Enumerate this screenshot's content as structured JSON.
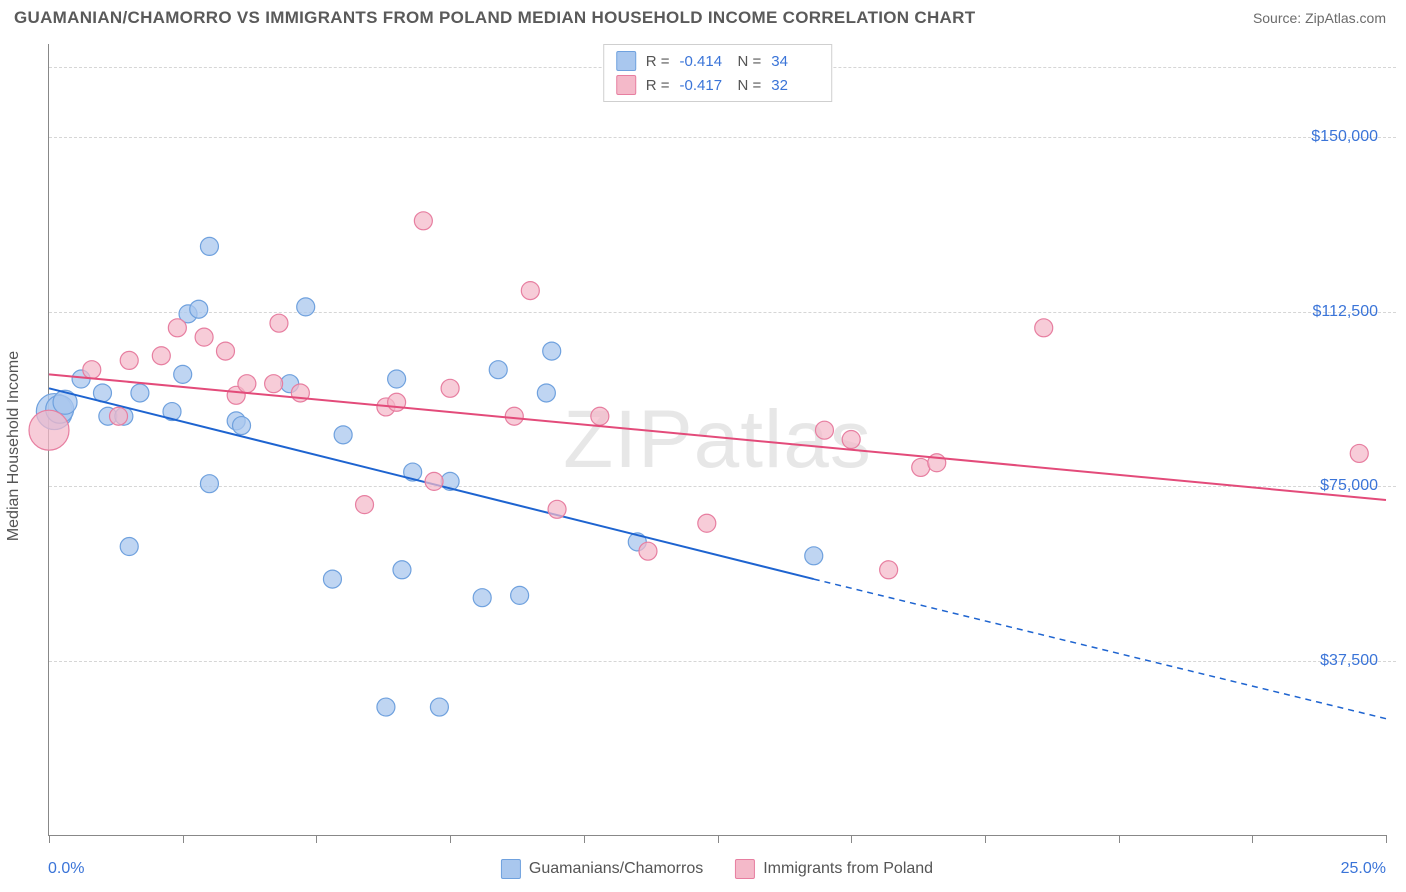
{
  "header": {
    "title": "GUAMANIAN/CHAMORRO VS IMMIGRANTS FROM POLAND MEDIAN HOUSEHOLD INCOME CORRELATION CHART",
    "source": "Source: ZipAtlas.com"
  },
  "watermark": "ZIPatlas",
  "chart": {
    "type": "scatter",
    "y_axis_title": "Median Household Income",
    "xlim": [
      0,
      25
    ],
    "ylim": [
      0,
      170000
    ],
    "x_min_label": "0.0%",
    "x_max_label": "25.0%",
    "x_tick_positions": [
      0,
      2.5,
      5,
      7.5,
      10,
      12.5,
      15,
      17.5,
      20,
      22.5,
      25
    ],
    "y_grid": [
      37500,
      75000,
      112500,
      150000,
      165000
    ],
    "y_tick_labels": {
      "37500": "$37,500",
      "75000": "$75,000",
      "112500": "$112,500",
      "150000": "$150,000"
    },
    "background_color": "#ffffff",
    "grid_color": "#d6d6d6",
    "axis_color": "#888888",
    "label_color": "#3a74d8",
    "series": [
      {
        "id": "guamanians",
        "name": "Guamanians/Chamorros",
        "R": "-0.414",
        "N": "34",
        "marker_fill": "#a9c7ee",
        "marker_stroke": "#6fa1de",
        "marker_opacity": 0.75,
        "line_color": "#1e64d0",
        "line_width": 2,
        "marker_r": 9,
        "trend_solid": [
          [
            0,
            96000
          ],
          [
            14.3,
            55000
          ]
        ],
        "trend_dashed": [
          [
            14.3,
            55000
          ],
          [
            25,
            25000
          ]
        ],
        "points": [
          [
            0.1,
            91000,
            18
          ],
          [
            0.2,
            91500,
            14
          ],
          [
            0.3,
            93000,
            12
          ],
          [
            0.6,
            98000,
            9
          ],
          [
            1.0,
            95000,
            9
          ],
          [
            1.1,
            90000,
            9
          ],
          [
            1.4,
            90000,
            9
          ],
          [
            1.5,
            62000,
            9
          ],
          [
            1.7,
            95000,
            9
          ],
          [
            2.3,
            91000,
            9
          ],
          [
            2.5,
            99000,
            9
          ],
          [
            2.6,
            112000,
            9
          ],
          [
            2.8,
            113000,
            9
          ],
          [
            3.0,
            126500,
            9
          ],
          [
            3.0,
            75500,
            9
          ],
          [
            3.5,
            89000,
            9
          ],
          [
            3.6,
            88000,
            9
          ],
          [
            4.5,
            97000,
            9
          ],
          [
            4.8,
            113500,
            9
          ],
          [
            5.3,
            55000,
            9
          ],
          [
            5.5,
            86000,
            9
          ],
          [
            6.3,
            27500,
            9
          ],
          [
            6.5,
            98000,
            9
          ],
          [
            6.6,
            57000,
            9
          ],
          [
            6.8,
            78000,
            9
          ],
          [
            7.3,
            27500,
            9
          ],
          [
            7.5,
            76000,
            9
          ],
          [
            8.1,
            51000,
            9
          ],
          [
            8.4,
            100000,
            9
          ],
          [
            8.8,
            51500,
            9
          ],
          [
            9.3,
            95000,
            9
          ],
          [
            9.4,
            104000,
            9
          ],
          [
            11.0,
            63000,
            9
          ],
          [
            14.3,
            60000,
            9
          ]
        ]
      },
      {
        "id": "poland",
        "name": "Immigrants from Poland",
        "R": "-0.417",
        "N": "32",
        "marker_fill": "#f4b9c9",
        "marker_stroke": "#e77ea0",
        "marker_opacity": 0.72,
        "line_color": "#e34b7a",
        "line_width": 2,
        "marker_r": 9,
        "trend_solid": [
          [
            0,
            99000
          ],
          [
            25,
            72000
          ]
        ],
        "trend_dashed": null,
        "points": [
          [
            0.0,
            87000,
            20
          ],
          [
            0.8,
            100000,
            9
          ],
          [
            1.3,
            90000,
            9
          ],
          [
            1.5,
            102000,
            9
          ],
          [
            2.1,
            103000,
            9
          ],
          [
            2.4,
            109000,
            9
          ],
          [
            2.9,
            107000,
            9
          ],
          [
            3.3,
            104000,
            9
          ],
          [
            3.5,
            94500,
            9
          ],
          [
            3.7,
            97000,
            9
          ],
          [
            4.2,
            97000,
            9
          ],
          [
            4.3,
            110000,
            9
          ],
          [
            4.7,
            95000,
            9
          ],
          [
            5.9,
            71000,
            9
          ],
          [
            6.3,
            92000,
            9
          ],
          [
            6.5,
            93000,
            9
          ],
          [
            7.0,
            132000,
            9
          ],
          [
            7.2,
            76000,
            9
          ],
          [
            7.5,
            96000,
            9
          ],
          [
            8.7,
            90000,
            9
          ],
          [
            9.0,
            117000,
            9
          ],
          [
            9.5,
            70000,
            9
          ],
          [
            10.3,
            90000,
            9
          ],
          [
            11.2,
            61000,
            9
          ],
          [
            12.3,
            67000,
            9
          ],
          [
            14.5,
            87000,
            9
          ],
          [
            15.0,
            85000,
            9
          ],
          [
            15.7,
            57000,
            9
          ],
          [
            16.3,
            79000,
            9
          ],
          [
            16.6,
            80000,
            9
          ],
          [
            18.6,
            109000,
            9
          ],
          [
            24.5,
            82000,
            9
          ]
        ]
      }
    ]
  }
}
